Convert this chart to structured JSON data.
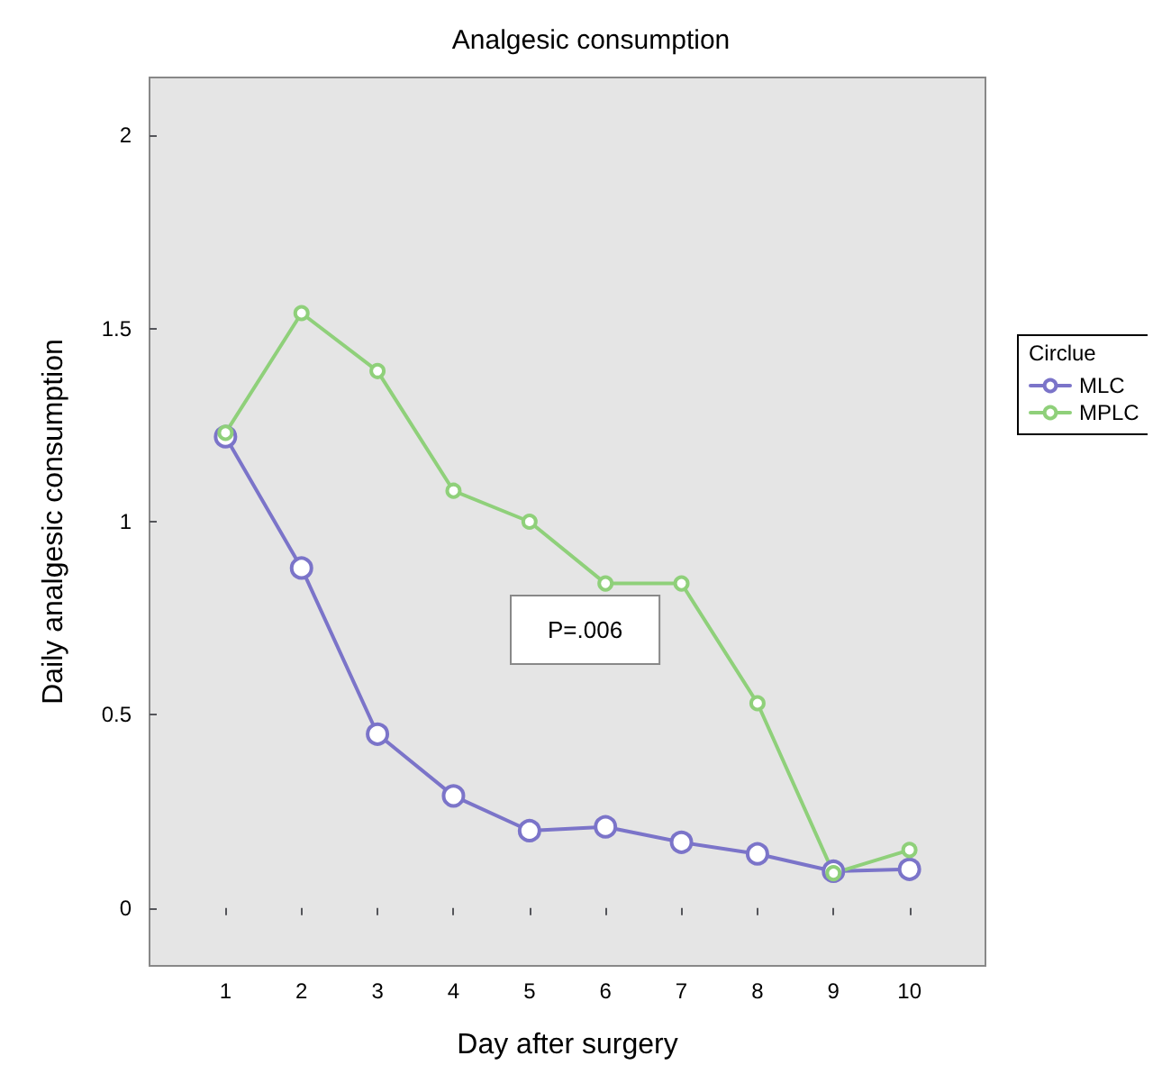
{
  "chart_data": {
    "type": "line",
    "title": "Analgesic consumption",
    "xlabel": "Day after surgery",
    "ylabel": "Daily analgesic consumption",
    "legend_title": "Circlue",
    "annotations": [
      "P=.006"
    ],
    "x": [
      1,
      2,
      3,
      4,
      5,
      6,
      7,
      8,
      9,
      10
    ],
    "series": [
      {
        "name": "MLC",
        "color": "#7b74c9",
        "values": [
          1.22,
          0.88,
          0.45,
          0.29,
          0.2,
          0.21,
          0.17,
          0.14,
          0.095,
          0.1
        ]
      },
      {
        "name": "MPLC",
        "color": "#8fd07a",
        "values": [
          1.23,
          1.54,
          1.39,
          1.08,
          1.0,
          0.84,
          0.84,
          0.53,
          0.09,
          0.15
        ]
      }
    ],
    "xlim": [
      0,
      11
    ],
    "xticks": [
      1,
      2,
      3,
      4,
      5,
      6,
      7,
      8,
      9,
      10
    ],
    "ylim": [
      -0.15,
      2.15
    ],
    "yticks": [
      0,
      0.5,
      1,
      1.5,
      2
    ],
    "grid": false,
    "legend": "right",
    "marker": "circle",
    "line_style": "solid"
  }
}
